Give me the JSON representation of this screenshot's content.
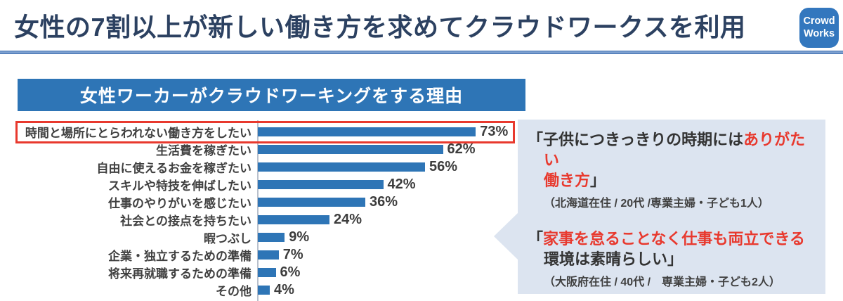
{
  "header": {
    "title": "女性の7割以上が新しい働き方を求めてクラウドワークスを利用",
    "logo": {
      "line1": "Crowd",
      "line2": "Works"
    }
  },
  "chart": {
    "title_label": "女性ワーカーがクラウドワーキングをする理由"
  },
  "chart_data": {
    "type": "bar",
    "orientation": "horizontal",
    "title": "女性ワーカーがクラウドワーキングをする理由",
    "categories": [
      "時間と場所にとらわれない働き方をしたい",
      "生活費を稼ぎたい",
      "自由に使えるお金を稼ぎたい",
      "スキルや特技を伸ばしたい",
      "仕事のやりがいを感じたい",
      "社会との接点を持ちたい",
      "暇つぶし",
      "企業・独立するための準備",
      "将来再就職するための準備",
      "その他"
    ],
    "values": [
      73,
      62,
      56,
      42,
      36,
      24,
      9,
      7,
      6,
      4
    ],
    "unit": "%",
    "xlim": [
      0,
      80
    ],
    "grid": false,
    "legend": false,
    "highlighted_category": "時間と場所にとらわれない働き方をしたい",
    "highlight_style": "red-outline-box"
  },
  "quotes": {
    "q1": {
      "open": "「",
      "black1": "子供につきっきりの時期には",
      "red1": "ありがたい",
      "red2": "働き方",
      "close": "」",
      "attribution": "（北海道在住 / 20代 /専業主婦・子ども1人）"
    },
    "q2": {
      "open": "「",
      "red1": "家事を怠ることなく仕事も両立できる",
      "black2": "環境は素晴らしい",
      "close": "」",
      "attribution": "（大阪府在住 / 40代 /　専業主婦・子ども2人）"
    }
  },
  "colors": {
    "accent_blue": "#2e75b6",
    "logo_blue": "#3377be",
    "title_navy": "#2c4161",
    "highlight_red": "#e8392e",
    "panel_bg": "#dce4f0",
    "text_gray": "#404040"
  }
}
